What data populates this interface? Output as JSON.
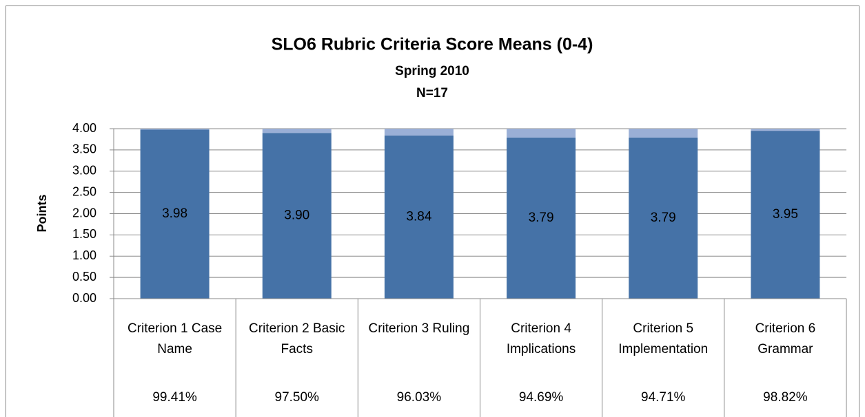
{
  "chart_data": {
    "type": "stacked_bar",
    "title": "SLO6 Rubric Criteria Score Means (0-4)",
    "subtitle": [
      "Spring 2010",
      "N=17"
    ],
    "y_label": "Points",
    "categories": [
      "Criterion 1 Case Name",
      "Criterion 2 Basic Facts",
      "Criterion 3 Ruling",
      "Criterion 4 Implications",
      "Criterion 5 Implementation",
      "Criterion 6 Grammar"
    ],
    "series": [
      {
        "color": "#4572a7",
        "values": [
          3.98,
          3.9,
          3.84,
          3.79,
          3.79,
          3.95
        ],
        "value_labels": [
          "3.98",
          "3.90",
          "3.84",
          "3.79",
          "3.79",
          "3.95"
        ]
      },
      {
        "color": "#9aafd6",
        "values": [
          0.02,
          0.1,
          0.16,
          0.21,
          0.21,
          0.05
        ]
      }
    ],
    "data_table": [
      "99.41%",
      "97.50%",
      "96.03%",
      "94.69%",
      "94.71%",
      "98.82%"
    ],
    "ylim": [
      0,
      4
    ],
    "yticks": [
      {
        "value": 0,
        "label": "0.00"
      },
      {
        "value": 0.5,
        "label": "0.50"
      },
      {
        "value": 1,
        "label": "1.00"
      },
      {
        "value": 1.5,
        "label": "1.50"
      },
      {
        "value": 2,
        "label": "2.00"
      },
      {
        "value": 2.5,
        "label": "2.50"
      },
      {
        "value": 3,
        "label": "3.00"
      },
      {
        "value": 3.5,
        "label": "3.50"
      },
      {
        "value": 4,
        "label": "4.00"
      }
    ],
    "grid": true
  }
}
